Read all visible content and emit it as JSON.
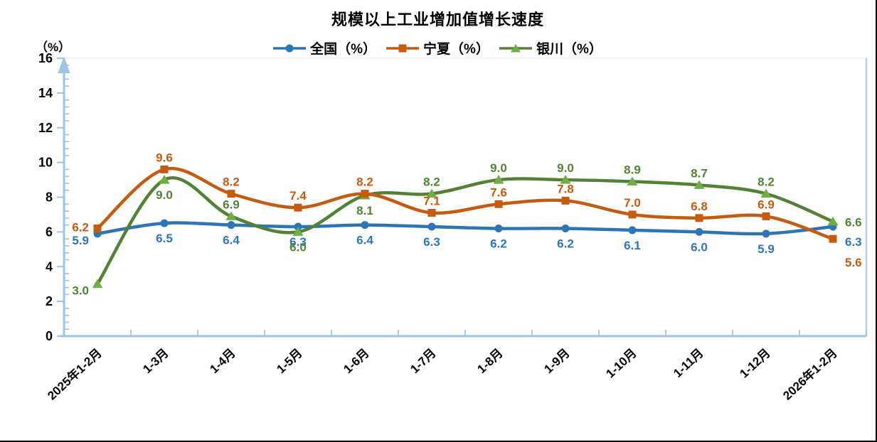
{
  "chart_data": {
    "type": "line",
    "title": "规模以上工业增加值增长速度",
    "xlabel": "",
    "ylabel": "（%）",
    "categories": [
      "2025年1-2月",
      "1-3月",
      "1-4月",
      "1-5月",
      "1-6月",
      "1-7月",
      "1-8月",
      "1-9月",
      "1-10月",
      "1-11月",
      "1-12月",
      "2026年1-2月"
    ],
    "series": [
      {
        "name": "全国（%）",
        "values": [
          5.9,
          6.5,
          6.4,
          6.3,
          6.4,
          6.3,
          6.2,
          6.2,
          6.1,
          6.0,
          5.9,
          6.3
        ],
        "color": "#2E75B6",
        "marker": "circle",
        "marker_color": "#2E75B6",
        "label_default": "below",
        "label_overrides": {
          "0": "left_down",
          "11": "right_mid"
        }
      },
      {
        "name": "宁夏（%）",
        "values": [
          6.2,
          9.6,
          8.2,
          7.4,
          8.2,
          7.1,
          7.6,
          7.8,
          7.0,
          6.8,
          6.9,
          5.6
        ],
        "color": "#C55A11",
        "marker": "square",
        "marker_color": "#C55A11",
        "label_default": "above",
        "label_overrides": {
          "0": "left_up",
          "11": "right_down"
        }
      },
      {
        "name": "银川（%）",
        "values": [
          3.0,
          9.0,
          6.9,
          6.0,
          8.1,
          8.2,
          9.0,
          9.0,
          8.9,
          8.7,
          8.2,
          6.6
        ],
        "color": "#538135",
        "marker": "triangle",
        "marker_color": "#70AD47",
        "label_default": "above",
        "label_overrides": {
          "0": "left_down",
          "1": "below",
          "3": "below",
          "4": "below",
          "11": "right_up"
        }
      }
    ],
    "ylim": [
      0,
      16
    ],
    "y_major_step": 2,
    "y_minor_step": 0.4,
    "grid": false,
    "legend_position": "top",
    "smooth": true,
    "draw_order": [
      0,
      2,
      1
    ],
    "axis_color": "#9DC3E6",
    "plot_border_top_color": "#E7EFF8",
    "plot_border_right_color": "#B4D0EA",
    "tick_label_color": "#000000",
    "value_label_decimals": 1
  }
}
